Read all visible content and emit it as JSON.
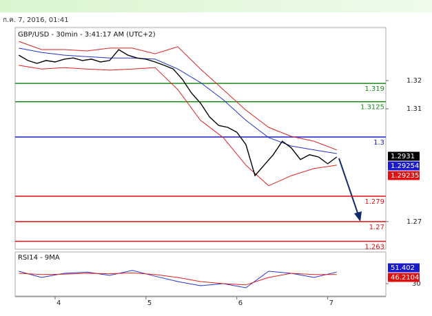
{
  "header": {
    "timestamp": "ก.ค. 7, 2016, 01:41"
  },
  "chart_data": [
    {
      "type": "line",
      "title": "GBP/USD - 30min - 3:41:17 AM (UTC+2)",
      "xlim": [
        3.56,
        7.64
      ],
      "xticks": [
        4,
        5,
        6,
        7
      ],
      "ylim": [
        1.2602,
        1.3388
      ],
      "yticks": [
        1.32,
        1.31,
        1.27
      ],
      "series": [
        {
          "color": "#000000",
          "x": [
            3.6,
            3.7,
            3.8,
            3.9,
            4.0,
            4.1,
            4.2,
            4.3,
            4.4,
            4.5,
            4.6,
            4.7,
            4.8,
            4.9,
            5.0,
            5.1,
            5.2,
            5.3,
            5.4,
            5.5,
            5.6,
            5.7,
            5.8,
            5.9,
            6.0,
            6.1,
            6.2,
            6.3,
            6.4,
            6.5,
            6.6,
            6.7,
            6.8,
            6.9,
            7.0,
            7.1
          ],
          "values": [
            1.329,
            1.3271,
            1.3261,
            1.3271,
            1.3266,
            1.3276,
            1.328,
            1.3271,
            1.3276,
            1.3266,
            1.3271,
            1.331,
            1.329,
            1.328,
            1.3276,
            1.3266,
            1.3254,
            1.3241,
            1.3205,
            1.3156,
            1.312,
            1.3071,
            1.3041,
            1.3034,
            1.3017,
            1.2973,
            1.2863,
            1.29,
            1.2937,
            1.2985,
            1.2961,
            1.292,
            1.2937,
            1.2929,
            1.2905,
            1.2929
          ]
        }
      ],
      "overlays": [
        {
          "color": "#2233cc",
          "x": [
            3.6,
            3.85,
            4.1,
            4.35,
            4.6,
            4.85,
            5.1,
            5.35,
            5.6,
            5.85,
            6.1,
            6.35,
            6.6,
            6.85,
            7.1
          ],
          "values": [
            1.3315,
            1.33,
            1.329,
            1.3285,
            1.328,
            1.328,
            1.3276,
            1.3241,
            1.3193,
            1.3132,
            1.3059,
            1.2998,
            1.2968,
            1.2954,
            1.2941
          ]
        },
        {
          "color": "#dd2222",
          "x": [
            3.6,
            3.85,
            4.1,
            4.35,
            4.6,
            4.85,
            5.1,
            5.35,
            5.6,
            5.85,
            6.1,
            6.35,
            6.6,
            6.85,
            7.1
          ],
          "values": [
            1.3339,
            1.331,
            1.331,
            1.3305,
            1.3315,
            1.3315,
            1.3295,
            1.332,
            1.3241,
            1.3168,
            1.3095,
            1.3034,
            1.3002,
            1.2985,
            1.2954
          ]
        },
        {
          "color": "#dd2222",
          "x": [
            3.6,
            3.85,
            4.1,
            4.35,
            4.6,
            4.85,
            5.1,
            5.35,
            5.6,
            5.85,
            6.1,
            6.35,
            6.6,
            6.85,
            7.1
          ],
          "values": [
            1.3254,
            1.3241,
            1.3246,
            1.3241,
            1.3237,
            1.3241,
            1.3246,
            1.3168,
            1.3059,
            1.2998,
            1.29,
            1.2827,
            1.2863,
            1.2888,
            1.29
          ]
        }
      ],
      "levels": {
        "values": [
          1.319,
          1.3125,
          1.3,
          1.279,
          1.27,
          1.263
        ],
        "colors": [
          "#1a8a1a",
          "#1a8a1a",
          "#1a1acc",
          "#dd1111",
          "#dd1111",
          "#dd1111"
        ]
      },
      "price_tags": {
        "values": [
          1.2931,
          1.29254,
          1.29235
        ],
        "colors": [
          "#000000",
          "#1a1acc",
          "#dd1111"
        ]
      }
    },
    {
      "type": "line",
      "title": "RSI14 - 9MA",
      "ylim": [
        0,
        100
      ],
      "yticks": [
        30
      ],
      "series": [
        {
          "color": "#2233cc",
          "x": [
            3.6,
            3.85,
            4.1,
            4.35,
            4.6,
            4.85,
            5.1,
            5.35,
            5.6,
            5.85,
            6.1,
            6.35,
            6.6,
            6.85,
            7.1
          ],
          "values": [
            60,
            45,
            55,
            58,
            50,
            62,
            48,
            35,
            25,
            30,
            20,
            60,
            55,
            45,
            58
          ]
        },
        {
          "color": "#dd2222",
          "x": [
            3.6,
            3.85,
            4.1,
            4.35,
            4.6,
            4.85,
            5.1,
            5.35,
            5.6,
            5.85,
            6.1,
            6.35,
            6.6,
            6.85,
            7.1
          ],
          "values": [
            55,
            52,
            53,
            55,
            54,
            56,
            52,
            45,
            35,
            30,
            27,
            45,
            55,
            52,
            52
          ]
        }
      ],
      "value_tags": {
        "values": [
          51.402,
          46.2104
        ],
        "colors": [
          "#1a1acc",
          "#dd1111"
        ]
      }
    }
  ]
}
